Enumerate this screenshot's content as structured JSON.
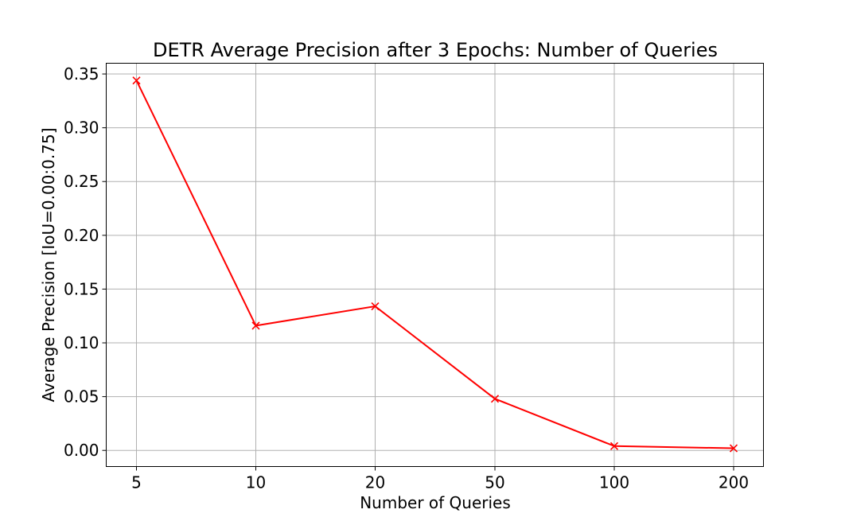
{
  "chart_data": {
    "type": "line",
    "title": "DETR Average Precision after 3 Epochs: Number of Queries",
    "xlabel": "Number of Queries",
    "ylabel": "Average Precision [IoU=0.00:0.75]",
    "categories": [
      "5",
      "10",
      "20",
      "50",
      "100",
      "200"
    ],
    "series": [
      {
        "values": [
          0.344,
          0.116,
          0.134,
          0.048,
          0.004,
          0.002
        ],
        "color": "#ff0000",
        "marker": "x"
      }
    ],
    "ylim": [
      -0.015,
      0.36
    ],
    "yticks": [
      0.0,
      0.05,
      0.1,
      0.15,
      0.2,
      0.25,
      0.3,
      0.35
    ],
    "ytick_labels": [
      "0.00",
      "0.05",
      "0.10",
      "0.15",
      "0.20",
      "0.25",
      "0.30",
      "0.35"
    ],
    "grid": true
  }
}
